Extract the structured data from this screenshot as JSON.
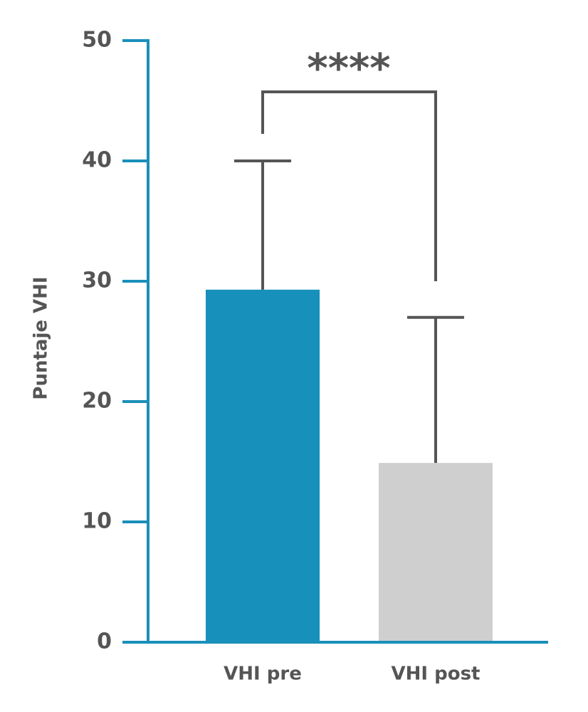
{
  "chart_data": {
    "type": "bar",
    "y_label": "Puntaje VHI",
    "categories": [
      "VHI pre",
      "VHI post"
    ],
    "values": [
      29.3,
      14.9
    ],
    "errors": [
      10.7,
      12.1
    ],
    "colors": [
      "#1790bb",
      "#d0cfd0"
    ],
    "ylim": [
      0,
      50
    ],
    "yticks": [
      0,
      10,
      20,
      30,
      40,
      50
    ],
    "annotation": "****"
  }
}
